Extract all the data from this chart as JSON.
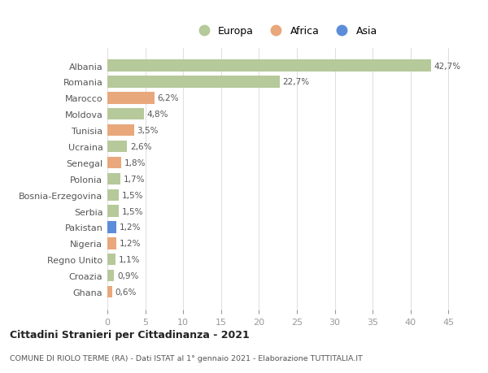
{
  "categories": [
    "Albania",
    "Romania",
    "Marocco",
    "Moldova",
    "Tunisia",
    "Ucraina",
    "Senegal",
    "Polonia",
    "Bosnia-Erzegovina",
    "Serbia",
    "Pakistan",
    "Nigeria",
    "Regno Unito",
    "Croazia",
    "Ghana"
  ],
  "values": [
    42.7,
    22.7,
    6.2,
    4.8,
    3.5,
    2.6,
    1.8,
    1.7,
    1.5,
    1.5,
    1.2,
    1.2,
    1.1,
    0.9,
    0.6
  ],
  "labels": [
    "42,7%",
    "22,7%",
    "6,2%",
    "4,8%",
    "3,5%",
    "2,6%",
    "1,8%",
    "1,7%",
    "1,5%",
    "1,5%",
    "1,2%",
    "1,2%",
    "1,1%",
    "0,9%",
    "0,6%"
  ],
  "continents": [
    "Europa",
    "Europa",
    "Africa",
    "Europa",
    "Africa",
    "Europa",
    "Africa",
    "Europa",
    "Europa",
    "Europa",
    "Asia",
    "Africa",
    "Europa",
    "Europa",
    "Africa"
  ],
  "colors": {
    "Europa": "#b5c99a",
    "Africa": "#e8a87c",
    "Asia": "#5b8dd9"
  },
  "title": "Cittadini Stranieri per Cittadinanza - 2021",
  "subtitle": "COMUNE DI RIOLO TERME (RA) - Dati ISTAT al 1° gennaio 2021 - Elaborazione TUTTITALIA.IT",
  "xlim": [
    0,
    47
  ],
  "xticks": [
    0,
    5,
    10,
    15,
    20,
    25,
    30,
    35,
    40,
    45
  ],
  "background_color": "#ffffff"
}
